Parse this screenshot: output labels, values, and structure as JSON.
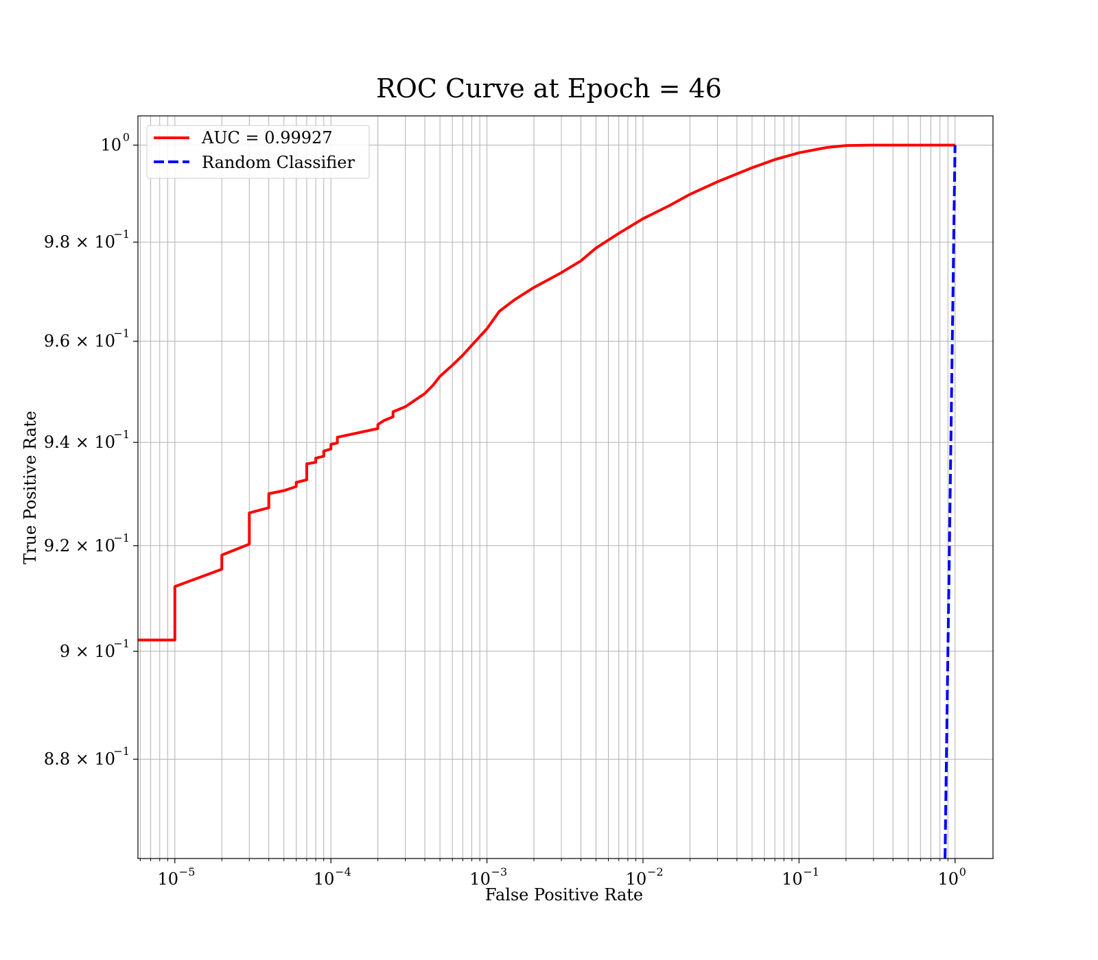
{
  "chart_data": {
    "type": "line",
    "title": "ROC Curve at Epoch = 46",
    "xlabel": "False Positive Rate",
    "ylabel": "True Positive Rate",
    "xscale": "log",
    "yscale": "log",
    "xlim": [
      5.8e-06,
      1.75
    ],
    "ylim": [
      0.862,
      1.0061
    ],
    "grid": "both, major and minor",
    "legend_position": "top-left",
    "x_ticks": [
      {
        "base": "10",
        "exp": "−5",
        "value": 1e-05
      },
      {
        "base": "10",
        "exp": "−4",
        "value": 0.0001
      },
      {
        "base": "10",
        "exp": "−3",
        "value": 0.001
      },
      {
        "base": "10",
        "exp": "−2",
        "value": 0.01
      },
      {
        "base": "10",
        "exp": "−1",
        "value": 0.1
      },
      {
        "base": "10",
        "exp": "0",
        "value": 1
      }
    ],
    "y_ticks": [
      {
        "base": "10",
        "exp": "0",
        "value": 1.0
      },
      {
        "base": "9.8 × 10",
        "exp": "−1",
        "value": 0.98
      },
      {
        "base": "9.6 × 10",
        "exp": "−1",
        "value": 0.96
      },
      {
        "base": "9.4 × 10",
        "exp": "−1",
        "value": 0.94
      },
      {
        "base": "9.2 × 10",
        "exp": "−1",
        "value": 0.92
      },
      {
        "base": "9 × 10",
        "exp": "−1",
        "value": 0.9
      },
      {
        "base": "8.8 × 10",
        "exp": "−1",
        "value": 0.88
      }
    ],
    "series": [
      {
        "name": "AUC = 0.99927",
        "color": "#ff0000",
        "style": "solid",
        "points": [
          [
            5.8e-06,
            0.9021
          ],
          [
            1e-05,
            0.9021
          ],
          [
            1e-05,
            0.9122
          ],
          [
            2e-05,
            0.9155
          ],
          [
            2e-05,
            0.9182
          ],
          [
            3e-05,
            0.9203
          ],
          [
            3e-05,
            0.9263
          ],
          [
            4e-05,
            0.9273
          ],
          [
            4e-05,
            0.93
          ],
          [
            5e-05,
            0.9306
          ],
          [
            6e-05,
            0.9314
          ],
          [
            6e-05,
            0.9322
          ],
          [
            7e-05,
            0.9327
          ],
          [
            7e-05,
            0.9358
          ],
          [
            8e-05,
            0.9361
          ],
          [
            8e-05,
            0.9369
          ],
          [
            9e-05,
            0.9373
          ],
          [
            9e-05,
            0.9383
          ],
          [
            0.0001,
            0.9387
          ],
          [
            0.0001,
            0.9396
          ],
          [
            0.00011,
            0.9399
          ],
          [
            0.00011,
            0.941
          ],
          [
            0.0002,
            0.9427
          ],
          [
            0.0002,
            0.9435
          ],
          [
            0.00022,
            0.9443
          ],
          [
            0.00025,
            0.945
          ],
          [
            0.00025,
            0.946
          ],
          [
            0.0003,
            0.947
          ],
          [
            0.00035,
            0.9484
          ],
          [
            0.0004,
            0.9496
          ],
          [
            0.00045,
            0.9512
          ],
          [
            0.0005,
            0.953
          ],
          [
            0.0006,
            0.9552
          ],
          [
            0.0007,
            0.9572
          ],
          [
            0.0008,
            0.9592
          ],
          [
            0.001,
            0.9625
          ],
          [
            0.0012,
            0.966
          ],
          [
            0.0015,
            0.9683
          ],
          [
            0.002,
            0.9708
          ],
          [
            0.003,
            0.9738
          ],
          [
            0.004,
            0.9762
          ],
          [
            0.005,
            0.9788
          ],
          [
            0.007,
            0.9818
          ],
          [
            0.01,
            0.9848
          ],
          [
            0.015,
            0.9876
          ],
          [
            0.02,
            0.9898
          ],
          [
            0.03,
            0.9924
          ],
          [
            0.05,
            0.9953
          ],
          [
            0.07,
            0.997
          ],
          [
            0.1,
            0.9984
          ],
          [
            0.15,
            0.9995
          ],
          [
            0.2,
            0.9999
          ],
          [
            0.3,
            1.0
          ],
          [
            1.0,
            1.0
          ]
        ]
      },
      {
        "name": "Random Classifier",
        "color": "#0000ff",
        "style": "dashed",
        "points": [
          [
            0.862,
            0.862
          ],
          [
            0.88,
            0.88
          ],
          [
            0.9,
            0.9
          ],
          [
            0.92,
            0.92
          ],
          [
            0.94,
            0.94
          ],
          [
            0.96,
            0.96
          ],
          [
            0.98,
            0.98
          ],
          [
            1.0,
            1.0
          ]
        ]
      }
    ]
  }
}
